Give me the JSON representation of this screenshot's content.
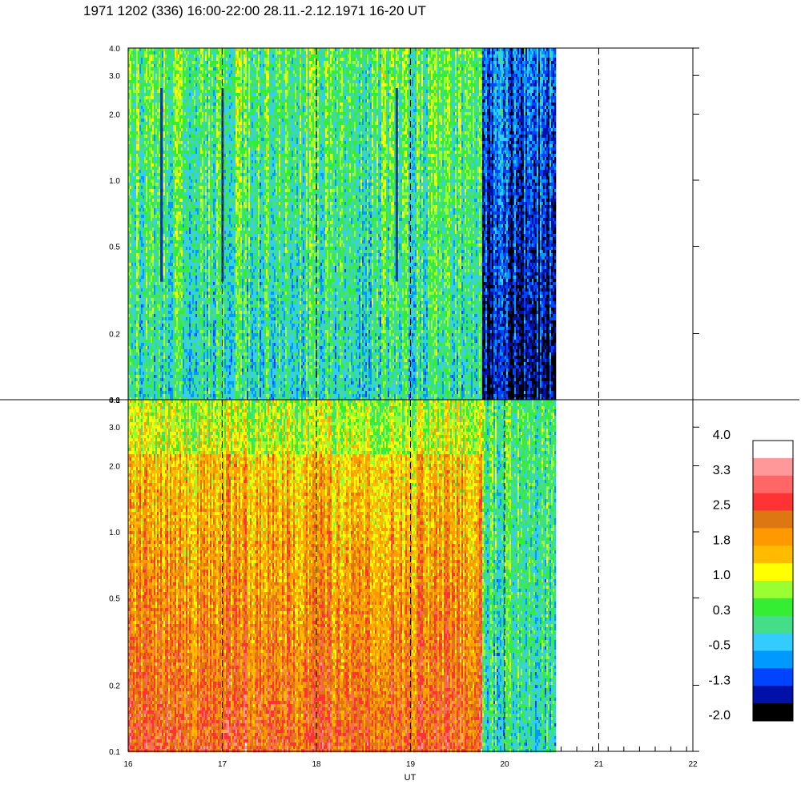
{
  "title": "1971 1202 (336) 16:00-22:00 28.11.-2.12.1971  16-20 UT",
  "chart_data": [
    {
      "type": "heatmap",
      "panel": "upper",
      "x_range": [
        16,
        22
      ],
      "y_range": [
        0.1,
        4.0
      ],
      "y_scale": "log",
      "data_x_extent": [
        16,
        20.55
      ],
      "x_ticks": [
        "16",
        "17",
        "18",
        "19",
        "20",
        "21",
        "22"
      ],
      "y_ticks": [
        "0.1",
        "0.2",
        "0.5",
        "1.0",
        "2.0",
        "3.0",
        "4.0"
      ],
      "dashed_hours": [
        17,
        18,
        19,
        20,
        21
      ],
      "description_values": {
        "dominant_level": 0.3,
        "low_band_start_hour": 19.75,
        "low_band_level": -1.3,
        "dark_streak_hours": [
          16.35,
          17.0,
          18.85
        ]
      }
    },
    {
      "type": "heatmap",
      "panel": "lower",
      "x_range": [
        16,
        22
      ],
      "y_range": [
        0.1,
        4.0
      ],
      "y_scale": "log",
      "data_x_extent": [
        16,
        20.55
      ],
      "x_ticks": [
        "16",
        "17",
        "18",
        "19",
        "20",
        "21",
        "22"
      ],
      "y_ticks": [
        "0.1",
        "0.2",
        "0.5",
        "1.0",
        "2.0",
        "3.0",
        "4.0"
      ],
      "xlabel": "UT",
      "dashed_hours": [
        17,
        18,
        19,
        20,
        21
      ],
      "description_values": {
        "dominant_level": 1.8,
        "low_band_start_hour": 19.75,
        "low_band_level": 0.3
      }
    }
  ],
  "colorbar": {
    "labels": [
      "4.0",
      "3.3",
      "2.5",
      "1.8",
      "1.0",
      "0.3",
      "-0.5",
      "-1.3",
      "-2.0"
    ],
    "range": [
      -2.0,
      4.0
    ],
    "colors": [
      "#ffffff",
      "#ff9999",
      "#ff6666",
      "#ff3333",
      "#dd7711",
      "#ff9900",
      "#ffbb00",
      "#ffff00",
      "#99ff33",
      "#33ee33",
      "#44dd88",
      "#33ccff",
      "#0099ff",
      "#0044ff",
      "#0011aa",
      "#000000"
    ]
  }
}
